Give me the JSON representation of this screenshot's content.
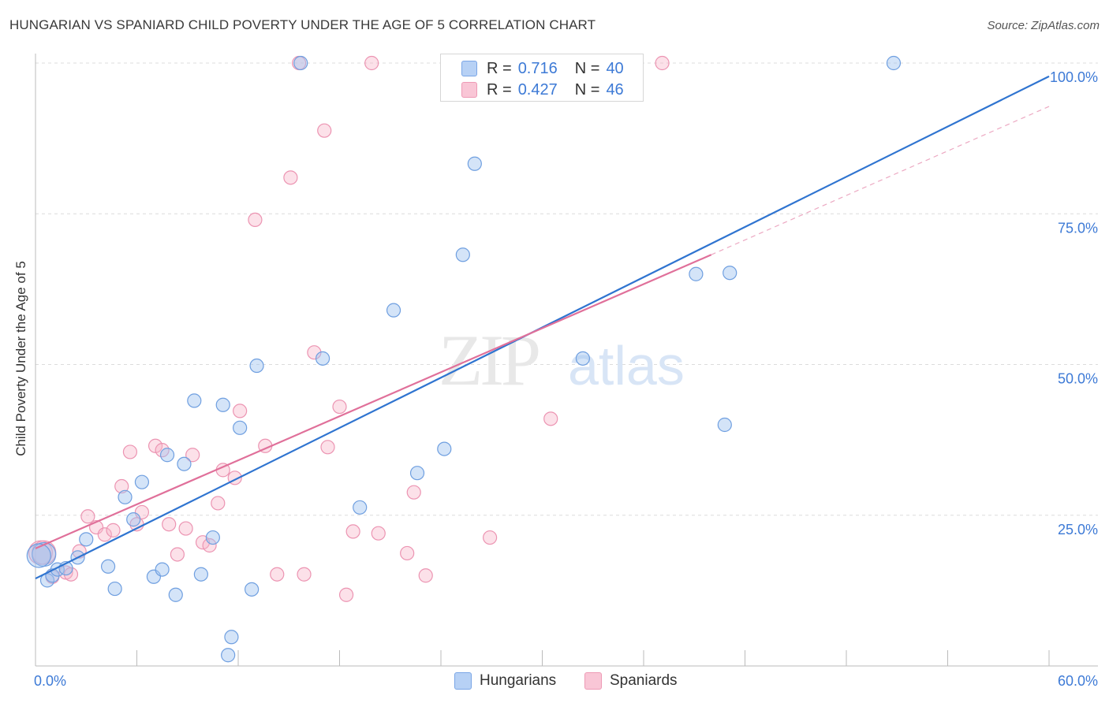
{
  "title": "HUNGARIAN VS SPANIARD CHILD POVERTY UNDER THE AGE OF 5 CORRELATION CHART",
  "source": "Source: ZipAtlas.com",
  "watermark": {
    "zip": "ZIP",
    "atlas": "atlas"
  },
  "legend": {
    "r_label": "R =",
    "n_label": "N =",
    "entries": [
      {
        "name": "Hungarians",
        "r": "0.716",
        "n": "40",
        "fill": "#b7d1f5",
        "stroke": "#7aa6e6"
      },
      {
        "name": "Spaniards",
        "r": "0.427",
        "n": "46",
        "fill": "#f9c6d6",
        "stroke": "#ee9ab5"
      }
    ]
  },
  "colors": {
    "blue_line": "#2f74d0",
    "pink_line": "#e0709a",
    "blue_fill": "rgba(160,195,240,0.45)",
    "blue_stroke": "#6f9fe0",
    "pink_fill": "rgba(247,180,200,0.40)",
    "pink_stroke": "#ec94b2",
    "tick_label": "#3d7ad6",
    "grid": "#dcdcdc"
  },
  "chart_data": {
    "type": "scatter",
    "title": "HUNGARIAN VS SPANIARD CHILD POVERTY UNDER THE AGE OF 5 CORRELATION CHART",
    "xlabel": "",
    "ylabel": "Child Poverty Under the Age of 5",
    "xlim": [
      0,
      60
    ],
    "ylim": [
      0,
      100
    ],
    "x_tick_labels": [
      "0.0%",
      "60.0%"
    ],
    "y_ticks": [
      25,
      50,
      75,
      100
    ],
    "y_tick_labels": [
      "25.0%",
      "50.0%",
      "75.0%",
      "100.0%"
    ],
    "grid": "horizontal dashed",
    "legend_placement": "top-center and bottom",
    "series": [
      {
        "name": "Hungarians",
        "r": 0.716,
        "n": 40,
        "trend": {
          "x": [
            0,
            60
          ],
          "y": [
            14.5,
            97.8
          ],
          "style": "solid"
        },
        "points": [
          [
            0.5,
            18.5
          ],
          [
            0.7,
            14.2
          ],
          [
            1.0,
            15.0
          ],
          [
            1.3,
            16.0
          ],
          [
            1.8,
            16.2
          ],
          [
            2.5,
            18.0
          ],
          [
            3.0,
            21.0
          ],
          [
            4.3,
            16.5
          ],
          [
            4.7,
            12.8
          ],
          [
            5.3,
            28.0
          ],
          [
            5.8,
            24.3
          ],
          [
            6.3,
            30.5
          ],
          [
            7.0,
            14.8
          ],
          [
            7.5,
            16.0
          ],
          [
            7.8,
            35.0
          ],
          [
            8.3,
            11.8
          ],
          [
            8.8,
            33.5
          ],
          [
            9.4,
            44.0
          ],
          [
            9.8,
            15.2
          ],
          [
            10.5,
            21.3
          ],
          [
            11.1,
            43.3
          ],
          [
            11.4,
            1.8
          ],
          [
            11.6,
            4.8
          ],
          [
            12.1,
            39.5
          ],
          [
            12.8,
            12.7
          ],
          [
            13.1,
            49.8
          ],
          [
            15.7,
            100.0
          ],
          [
            17.0,
            51.0
          ],
          [
            19.2,
            26.3
          ],
          [
            21.2,
            59.0
          ],
          [
            22.6,
            32.0
          ],
          [
            24.2,
            36.0
          ],
          [
            25.3,
            68.2
          ],
          [
            26.0,
            83.3
          ],
          [
            32.4,
            51.0
          ],
          [
            39.1,
            65.0
          ],
          [
            40.8,
            40.0
          ],
          [
            41.1,
            65.2
          ],
          [
            50.8,
            100.0
          ],
          [
            0.2,
            18.3
          ]
        ]
      },
      {
        "name": "Spaniards",
        "r": 0.427,
        "n": 46,
        "trend": {
          "x": [
            0,
            40
          ],
          "y": [
            19.5,
            68.2
          ],
          "style": "solid",
          "extension": {
            "x": [
              40,
              60
            ],
            "y": [
              68.2,
              92.8
            ],
            "style": "dashed"
          }
        },
        "points": [
          [
            0.3,
            18.8
          ],
          [
            1.0,
            14.8
          ],
          [
            1.8,
            15.5
          ],
          [
            2.1,
            15.2
          ],
          [
            2.6,
            19.0
          ],
          [
            3.1,
            24.8
          ],
          [
            3.6,
            23.0
          ],
          [
            4.1,
            21.8
          ],
          [
            4.6,
            22.5
          ],
          [
            5.1,
            29.8
          ],
          [
            5.6,
            35.5
          ],
          [
            6.0,
            23.5
          ],
          [
            6.3,
            25.5
          ],
          [
            7.1,
            36.5
          ],
          [
            7.5,
            35.8
          ],
          [
            7.9,
            23.5
          ],
          [
            8.4,
            18.5
          ],
          [
            8.9,
            22.8
          ],
          [
            9.3,
            35.0
          ],
          [
            9.9,
            20.5
          ],
          [
            10.3,
            20.0
          ],
          [
            10.8,
            27.0
          ],
          [
            11.1,
            32.5
          ],
          [
            11.8,
            31.2
          ],
          [
            12.1,
            42.3
          ],
          [
            13.0,
            74.0
          ],
          [
            13.6,
            36.5
          ],
          [
            14.3,
            15.2
          ],
          [
            15.1,
            81.0
          ],
          [
            15.6,
            100.0
          ],
          [
            15.9,
            15.2
          ],
          [
            16.5,
            52.0
          ],
          [
            17.1,
            88.8
          ],
          [
            17.3,
            36.3
          ],
          [
            18.0,
            43.0
          ],
          [
            18.4,
            11.8
          ],
          [
            18.8,
            22.3
          ],
          [
            19.9,
            100.0
          ],
          [
            20.3,
            22.0
          ],
          [
            22.0,
            18.7
          ],
          [
            22.4,
            28.8
          ],
          [
            23.1,
            15.0
          ],
          [
            26.9,
            21.3
          ],
          [
            30.5,
            41.0
          ],
          [
            37.1,
            100.0
          ],
          [
            0.5,
            18.8
          ]
        ]
      }
    ]
  }
}
